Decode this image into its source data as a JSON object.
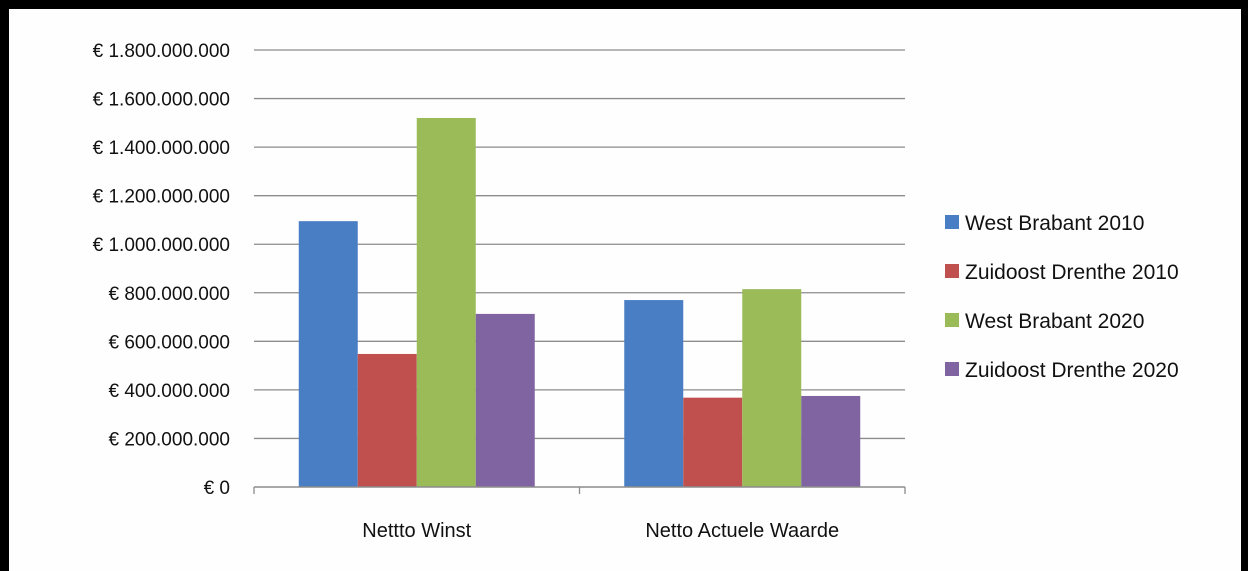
{
  "chart_data": {
    "type": "bar",
    "categories": [
      "Nettto Winst",
      "Netto Actuele Waarde"
    ],
    "series": [
      {
        "name": "West Brabant 2010",
        "color": "#4a7ec4",
        "values": [
          1095000000,
          770000000
        ]
      },
      {
        "name": "Zuidoost Drenthe 2010",
        "color": "#c0504d",
        "values": [
          548000000,
          368000000
        ]
      },
      {
        "name": "West Brabant 2020",
        "color": "#9bbb59",
        "values": [
          1520000000,
          815000000
        ]
      },
      {
        "name": "Zuidoost Drenthe 2020",
        "color": "#8064a2",
        "values": [
          713000000,
          375000000
        ]
      }
    ],
    "ylim": [
      0,
      1800000000
    ],
    "y_ticks": [
      {
        "value": 0,
        "label": "€ 0"
      },
      {
        "value": 200000000,
        "label": "€ 200.000.000"
      },
      {
        "value": 400000000,
        "label": "€ 400.000.000"
      },
      {
        "value": 600000000,
        "label": "€ 600.000.000"
      },
      {
        "value": 800000000,
        "label": "€ 800.000.000"
      },
      {
        "value": 1000000000,
        "label": "€ 1.000.000.000"
      },
      {
        "value": 1200000000,
        "label": "€ 1.200.000.000"
      },
      {
        "value": 1400000000,
        "label": "€ 1.400.000.000"
      },
      {
        "value": 1600000000,
        "label": "€ 1.600.000.000"
      },
      {
        "value": 1800000000,
        "label": "€ 1.800.000.000"
      }
    ],
    "grid": true,
    "legend_position": "right",
    "title": "",
    "xlabel": "",
    "ylabel": ""
  }
}
